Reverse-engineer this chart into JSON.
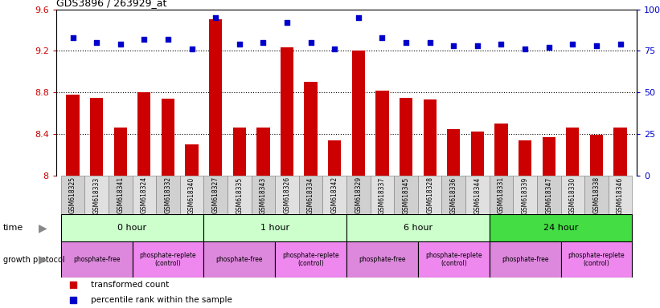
{
  "title": "GDS3896 / 263929_at",
  "samples": [
    "GSM618325",
    "GSM618333",
    "GSM618341",
    "GSM618324",
    "GSM618332",
    "GSM618340",
    "GSM618327",
    "GSM618335",
    "GSM618343",
    "GSM618326",
    "GSM618334",
    "GSM618342",
    "GSM618329",
    "GSM618337",
    "GSM618345",
    "GSM618328",
    "GSM618336",
    "GSM618344",
    "GSM618331",
    "GSM618339",
    "GSM618347",
    "GSM618330",
    "GSM618338",
    "GSM618346"
  ],
  "transformed_count": [
    8.78,
    8.75,
    8.46,
    8.8,
    8.74,
    8.3,
    9.5,
    8.46,
    8.46,
    9.23,
    8.9,
    8.34,
    9.2,
    8.82,
    8.75,
    8.73,
    8.45,
    8.42,
    8.5,
    8.34,
    8.37,
    8.46,
    8.39,
    8.46
  ],
  "percentile_rank": [
    83,
    80,
    79,
    82,
    82,
    76,
    95,
    79,
    80,
    92,
    80,
    76,
    95,
    83,
    80,
    80,
    78,
    78,
    79,
    76,
    77,
    79,
    78,
    79
  ],
  "ylim_left": [
    8.0,
    9.6
  ],
  "ylim_right": [
    0,
    100
  ],
  "yticks_left": [
    8.0,
    8.4,
    8.8,
    9.2,
    9.6
  ],
  "yticks_left_labels": [
    "8",
    "8.4",
    "8.8",
    "9.2",
    "9.6"
  ],
  "yticks_right": [
    0,
    25,
    50,
    75,
    100
  ],
  "yticks_right_labels": [
    "0",
    "25",
    "50",
    "75",
    "100%"
  ],
  "bar_color": "#cc0000",
  "dot_color": "#0000cc",
  "bar_bottom": 8.0,
  "time_groups": [
    {
      "label": "0 hour",
      "start": 0,
      "end": 6,
      "color": "#ccffcc"
    },
    {
      "label": "1 hour",
      "start": 6,
      "end": 12,
      "color": "#ccffcc"
    },
    {
      "label": "6 hour",
      "start": 12,
      "end": 18,
      "color": "#ccffcc"
    },
    {
      "label": "24 hour",
      "start": 18,
      "end": 24,
      "color": "#44dd44"
    }
  ],
  "protocol_groups": [
    {
      "label": "phosphate-free",
      "start": 0,
      "end": 3,
      "color": "#dd88dd"
    },
    {
      "label": "phosphate-replete\n(control)",
      "start": 3,
      "end": 6,
      "color": "#ee88ee"
    },
    {
      "label": "phosphate-free",
      "start": 6,
      "end": 9,
      "color": "#dd88dd"
    },
    {
      "label": "phosphate-replete\n(control)",
      "start": 9,
      "end": 12,
      "color": "#ee88ee"
    },
    {
      "label": "phosphate-free",
      "start": 12,
      "end": 15,
      "color": "#dd88dd"
    },
    {
      "label": "phosphate-replete\n(control)",
      "start": 15,
      "end": 18,
      "color": "#ee88ee"
    },
    {
      "label": "phosphate-free",
      "start": 18,
      "end": 21,
      "color": "#dd88dd"
    },
    {
      "label": "phosphate-replete\n(control)",
      "start": 21,
      "end": 24,
      "color": "#ee88ee"
    }
  ],
  "bg_color": "#ffffff",
  "tick_label_color_left": "#cc0000",
  "tick_label_color_right": "#0000cc",
  "dotted_yticks": [
    8.4,
    8.8,
    9.2
  ],
  "xtick_box_color": "#d8d8d8",
  "legend_items": [
    {
      "color": "#cc0000",
      "marker": "s",
      "label": "transformed count"
    },
    {
      "color": "#0000cc",
      "marker": "s",
      "label": "percentile rank within the sample"
    }
  ]
}
